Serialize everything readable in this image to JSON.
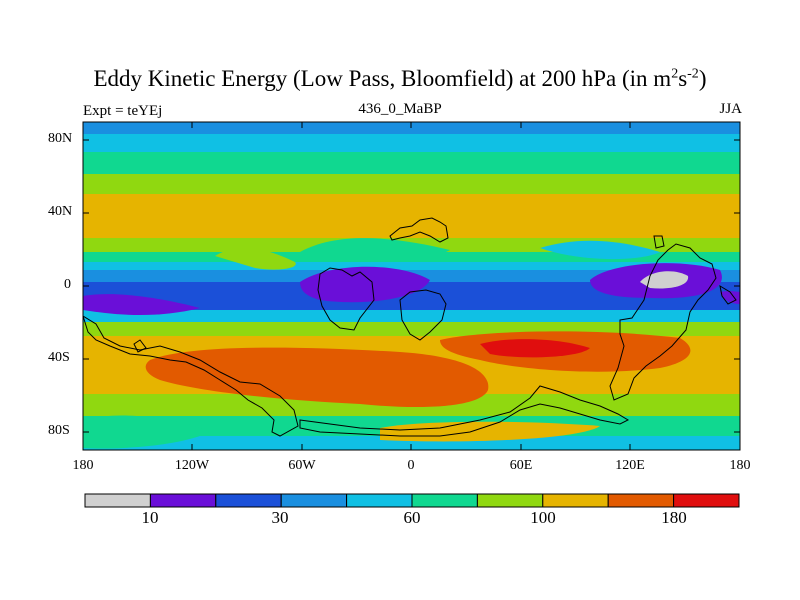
{
  "title": {
    "main": "Eddy Kinetic Energy (Low Pass, Bloomfield) at 200 hPa (in m",
    "sup1": "2",
    "mid": "s",
    "sup2": "-2",
    "end": ")"
  },
  "subtitle": {
    "experiment": "Expt = teYEj",
    "run": "436_0_MaBP",
    "season": "JJA"
  },
  "map": {
    "y_labels": [
      "80N",
      "40N",
      "0",
      "40S",
      "80S"
    ],
    "x_labels": [
      "180",
      "120W",
      "60W",
      "0",
      "60E",
      "120E",
      "180"
    ]
  },
  "colorbar": {
    "labels": [
      "10",
      "30",
      "60",
      "100",
      "180"
    ],
    "colors": [
      "#d0d0d0",
      "#6a0fd8",
      "#1b50d8",
      "#1a8fe0",
      "#10c0e4",
      "#10d890",
      "#90d810",
      "#e6b400",
      "#e25a00",
      "#e00e0e"
    ]
  }
}
